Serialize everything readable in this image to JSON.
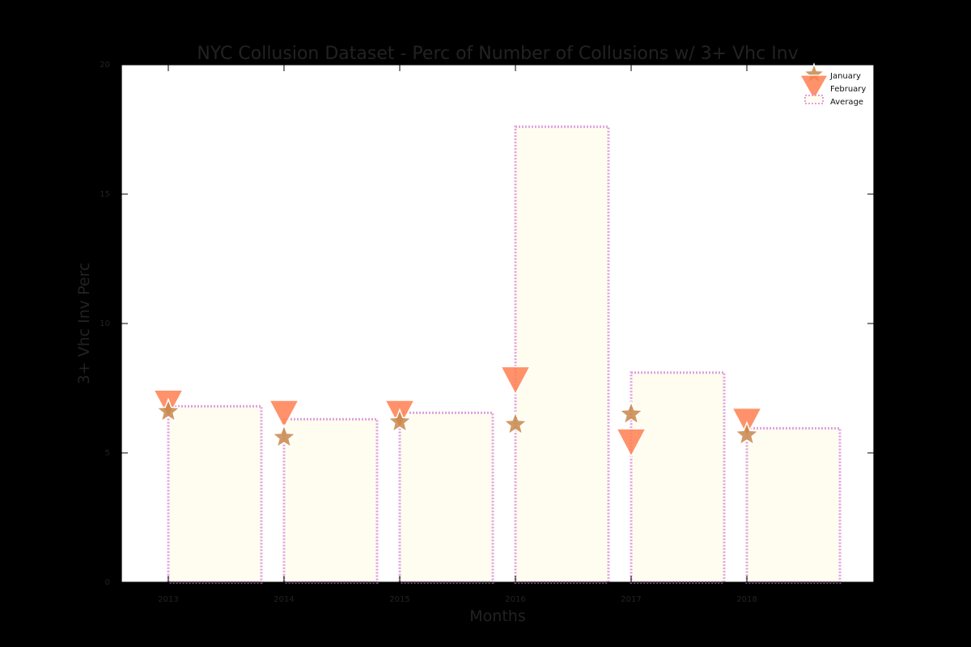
{
  "chart_data": {
    "type": "bar",
    "title": "NYC Collusion Dataset - Perc of Number of Collusions w/ 3+ Vhc Inv",
    "xlabel": "Months",
    "ylabel": "3+ Vhc Inv Perc",
    "categories": [
      "2013",
      "2014",
      "2015",
      "2016",
      "2017",
      "2018"
    ],
    "ylim": [
      0,
      20
    ],
    "yticks": [
      "0",
      "5",
      "10",
      "15",
      "20"
    ],
    "grid": false,
    "legend_position": "top-right",
    "series": [
      {
        "name": "January",
        "kind": "marker",
        "marker": "star",
        "color": "#C8874A",
        "values": [
          6.6,
          5.6,
          6.2,
          6.1,
          6.5,
          5.7
        ]
      },
      {
        "name": "February",
        "kind": "marker",
        "marker": "triangle-down",
        "color": "#FF7F50",
        "values": [
          6.9,
          6.5,
          6.5,
          7.8,
          5.4,
          6.2
        ]
      },
      {
        "name": "Average",
        "kind": "bar",
        "fill": "#FFFDF0",
        "edge_color": "#E0A0E0",
        "edge_style": "dotted",
        "values": [
          6.8,
          6.3,
          6.55,
          17.6,
          8.1,
          5.95
        ]
      }
    ]
  }
}
